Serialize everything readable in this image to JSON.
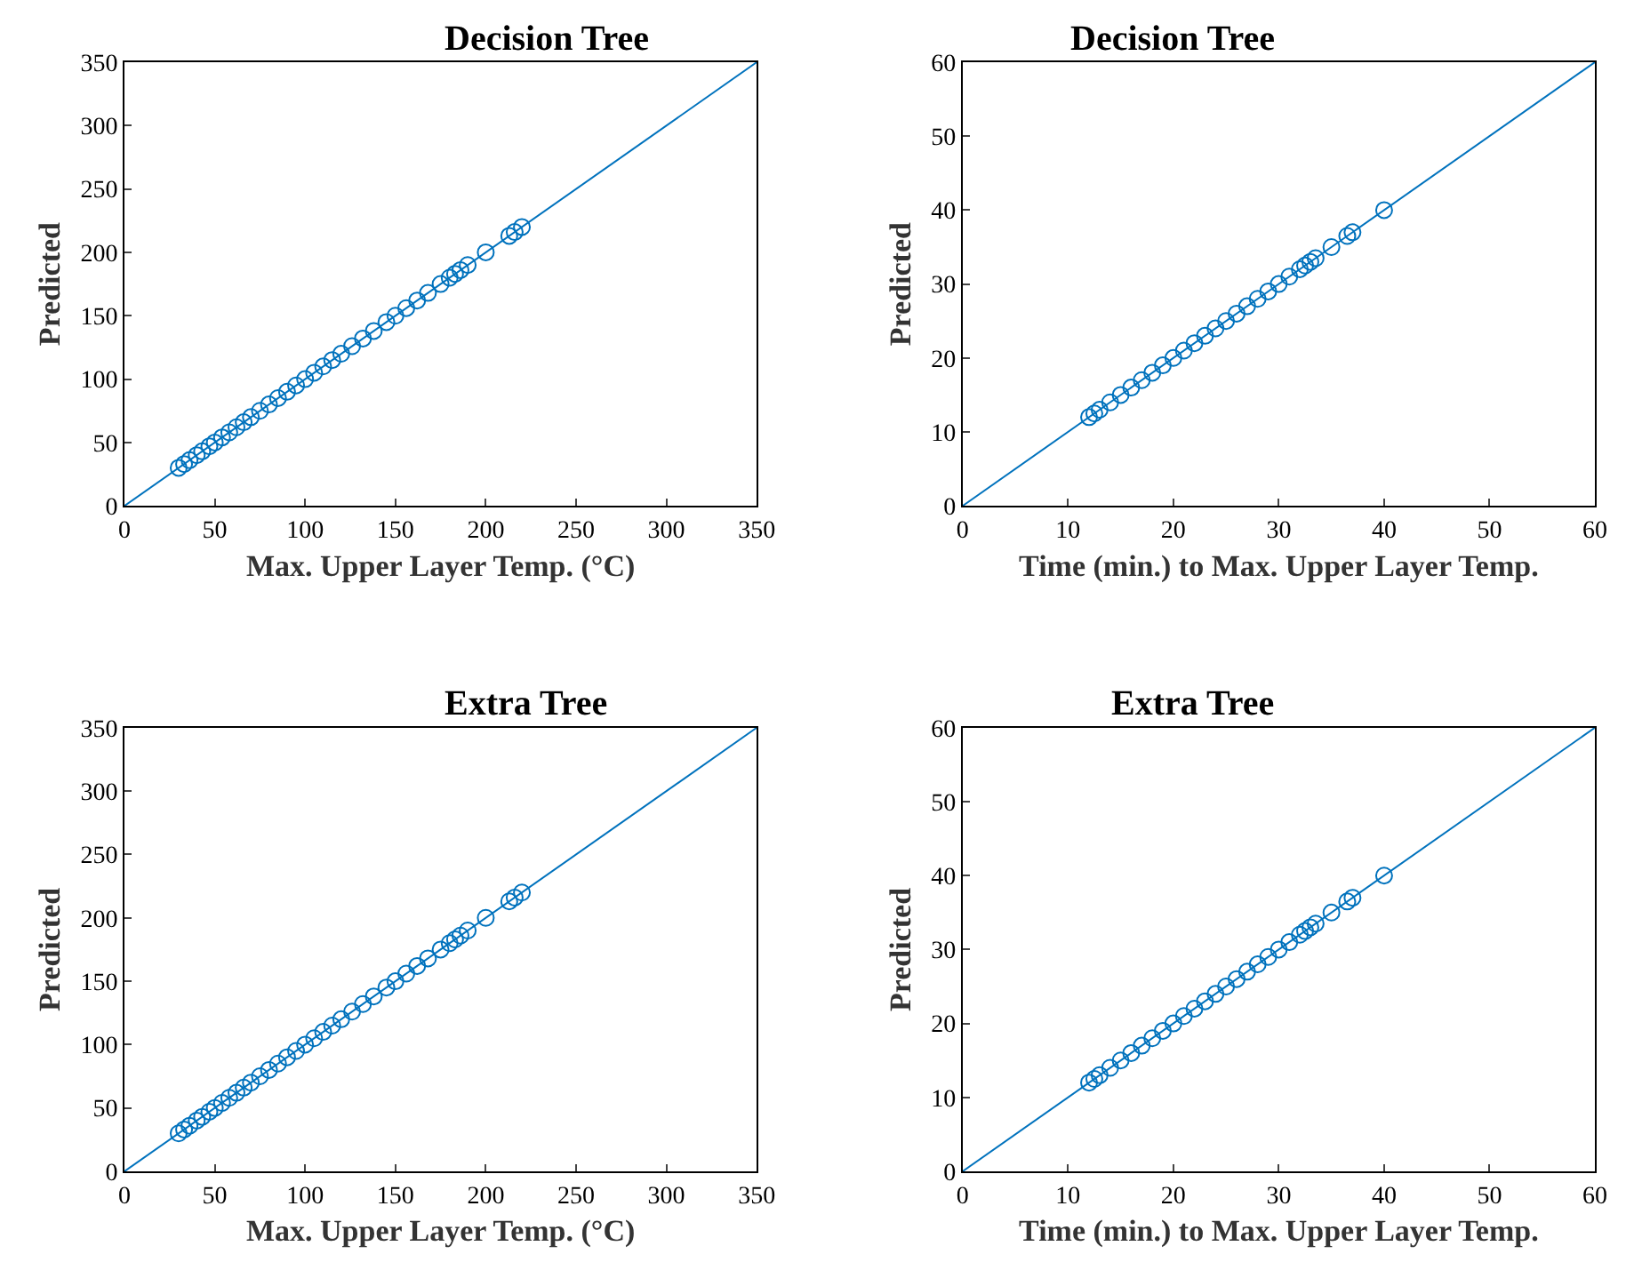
{
  "chart_data": [
    {
      "type": "scatter",
      "title": "Decision Tree",
      "xlabel": "Max. Upper Layer Temp. (°C)",
      "ylabel": "Predicted",
      "xlim": [
        0,
        350
      ],
      "ylim": [
        0,
        350
      ],
      "xticks": [
        0,
        50,
        100,
        150,
        200,
        250,
        300,
        350
      ],
      "yticks": [
        0,
        50,
        100,
        150,
        200,
        250,
        300,
        350
      ],
      "series": [
        {
          "color": "#0072bd",
          "marker": "circle",
          "x": [
            30,
            33,
            36,
            40,
            43,
            47,
            50,
            54,
            58,
            62,
            66,
            70,
            75,
            80,
            85,
            90,
            95,
            100,
            105,
            110,
            115,
            120,
            126,
            132,
            138,
            145,
            150,
            156,
            162,
            168,
            175,
            180,
            183,
            186,
            190,
            200,
            213,
            216,
            220
          ],
          "values": [
            30,
            33,
            36,
            40,
            43,
            47,
            50,
            54,
            58,
            62,
            66,
            70,
            75,
            80,
            85,
            90,
            95,
            100,
            105,
            110,
            115,
            120,
            126,
            132,
            138,
            145,
            150,
            156,
            162,
            168,
            175,
            180,
            183,
            186,
            190,
            200,
            213,
            216,
            220
          ]
        },
        {
          "type": "line",
          "color": "#0072bd",
          "marker": "none",
          "x": [
            0,
            350
          ],
          "values": [
            0,
            350
          ]
        }
      ]
    },
    {
      "type": "scatter",
      "title": "Decision Tree",
      "xlabel": "Time (min.) to Max. Upper Layer Temp.",
      "ylabel": "Predicted",
      "xlim": [
        0,
        60
      ],
      "ylim": [
        0,
        60
      ],
      "xticks": [
        0,
        10,
        20,
        30,
        40,
        50,
        60
      ],
      "yticks": [
        0,
        10,
        20,
        30,
        40,
        50,
        60
      ],
      "series": [
        {
          "color": "#0072bd",
          "marker": "circle",
          "x": [
            12,
            12.5,
            13,
            14,
            15,
            16,
            17,
            18,
            19,
            20,
            21,
            22,
            23,
            24,
            25,
            26,
            27,
            28,
            29,
            30,
            31,
            32,
            32.5,
            33,
            33.5,
            35,
            36.5,
            37,
            40
          ],
          "values": [
            12,
            12.5,
            13,
            14,
            15,
            16,
            17,
            18,
            19,
            20,
            21,
            22,
            23,
            24,
            25,
            26,
            27,
            28,
            29,
            30,
            31,
            32,
            32.5,
            33,
            33.5,
            35,
            36.5,
            37,
            40
          ]
        },
        {
          "type": "line",
          "color": "#0072bd",
          "marker": "none",
          "x": [
            0,
            60
          ],
          "values": [
            0,
            60
          ]
        }
      ]
    },
    {
      "type": "scatter",
      "title": "Extra Tree",
      "xlabel": "Max. Upper Layer Temp. (°C)",
      "ylabel": "Predicted",
      "xlim": [
        0,
        350
      ],
      "ylim": [
        0,
        350
      ],
      "xticks": [
        0,
        50,
        100,
        150,
        200,
        250,
        300,
        350
      ],
      "yticks": [
        0,
        50,
        100,
        150,
        200,
        250,
        300,
        350
      ],
      "series": [
        {
          "color": "#0072bd",
          "marker": "circle",
          "x": [
            30,
            33,
            36,
            40,
            43,
            47,
            50,
            54,
            58,
            62,
            66,
            70,
            75,
            80,
            85,
            90,
            95,
            100,
            105,
            110,
            115,
            120,
            126,
            132,
            138,
            145,
            150,
            156,
            162,
            168,
            175,
            180,
            183,
            186,
            190,
            200,
            213,
            216,
            220
          ],
          "values": [
            30,
            33,
            36,
            40,
            43,
            47,
            50,
            54,
            58,
            62,
            66,
            70,
            75,
            80,
            85,
            90,
            95,
            100,
            105,
            110,
            115,
            120,
            126,
            132,
            138,
            145,
            150,
            156,
            162,
            168,
            175,
            180,
            183,
            186,
            190,
            200,
            213,
            216,
            220
          ]
        },
        {
          "type": "line",
          "color": "#0072bd",
          "marker": "none",
          "x": [
            0,
            350
          ],
          "values": [
            0,
            350
          ]
        }
      ]
    },
    {
      "type": "scatter",
      "title": "Extra Tree",
      "xlabel": "Time (min.) to Max. Upper Layer Temp.",
      "ylabel": "Predicted",
      "xlim": [
        0,
        60
      ],
      "ylim": [
        0,
        60
      ],
      "xticks": [
        0,
        10,
        20,
        30,
        40,
        50,
        60
      ],
      "yticks": [
        0,
        10,
        20,
        30,
        40,
        50,
        60
      ],
      "series": [
        {
          "color": "#0072bd",
          "marker": "circle",
          "x": [
            12,
            12.5,
            13,
            14,
            15,
            16,
            17,
            18,
            19,
            20,
            21,
            22,
            23,
            24,
            25,
            26,
            27,
            28,
            29,
            30,
            31,
            32,
            32.5,
            33,
            33.5,
            35,
            36.5,
            37,
            40
          ],
          "values": [
            12,
            12.5,
            13,
            14,
            15,
            16,
            17,
            18,
            19,
            20,
            21,
            22,
            23,
            24,
            25,
            26,
            27,
            28,
            29,
            30,
            31,
            32,
            32.5,
            33,
            33.5,
            35,
            36.5,
            37,
            40
          ]
        },
        {
          "type": "line",
          "color": "#0072bd",
          "marker": "none",
          "x": [
            0,
            60
          ],
          "values": [
            0,
            60
          ]
        }
      ]
    }
  ]
}
